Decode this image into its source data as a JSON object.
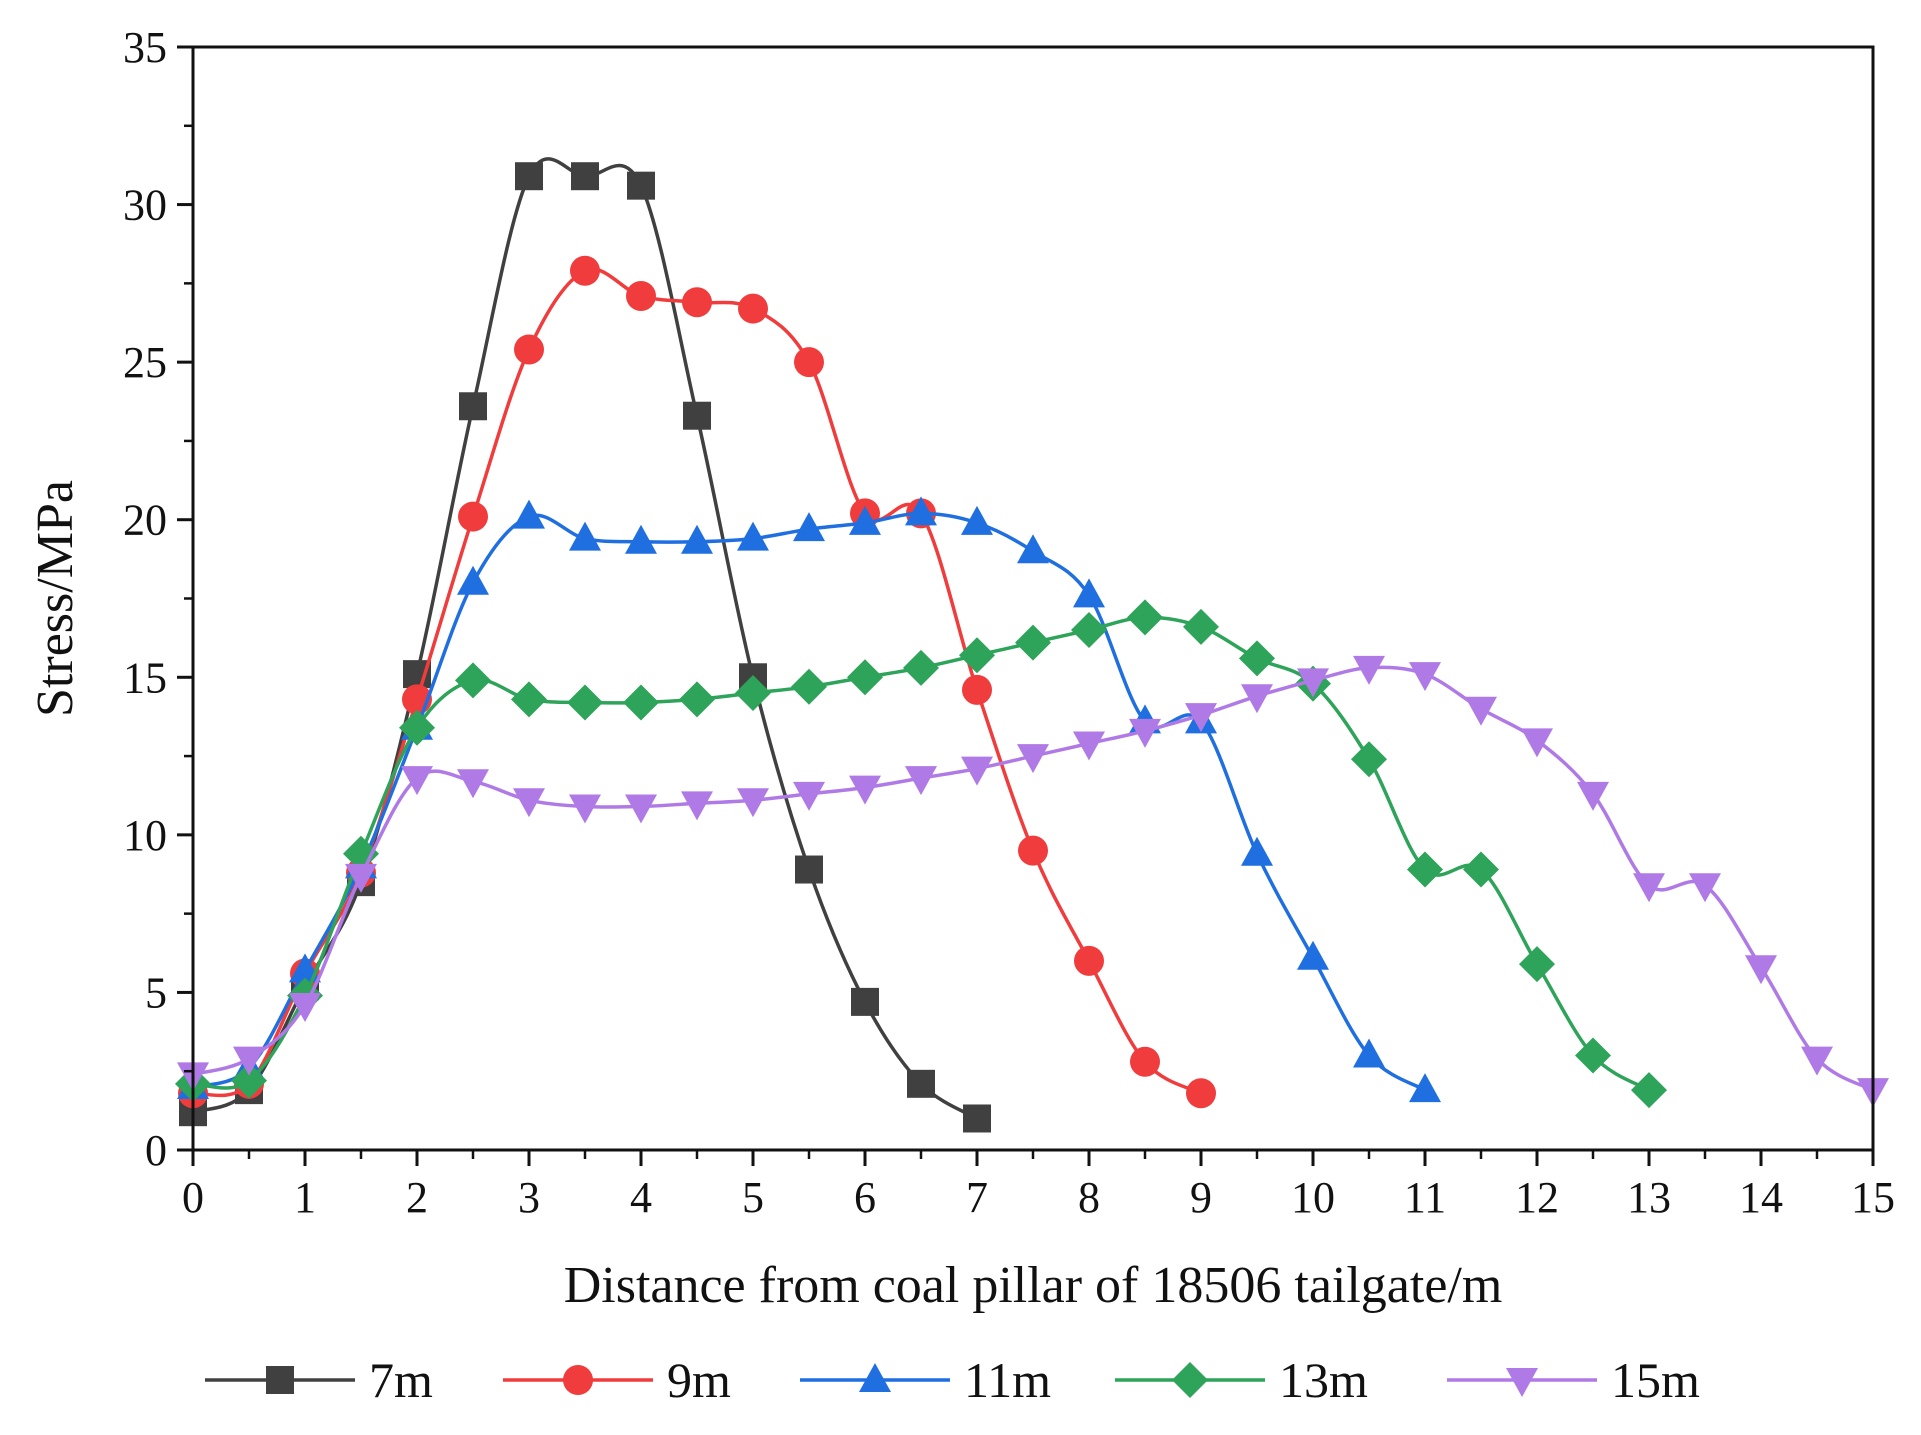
{
  "chart_data": {
    "type": "line",
    "title": "",
    "xlabel": "Distance from coal pillar of 18506 tailgate/m",
    "ylabel": "Stress/MPa",
    "xlim": [
      0,
      15
    ],
    "ylim": [
      0,
      35
    ],
    "xticks": [
      "0",
      "1",
      "2",
      "3",
      "4",
      "5",
      "6",
      "7",
      "8",
      "9",
      "10",
      "11",
      "12",
      "13",
      "14",
      "15"
    ],
    "yticks": [
      "0",
      "5",
      "10",
      "15",
      "20",
      "25",
      "30",
      "35"
    ],
    "grid": false,
    "legend_position": "bottom",
    "series": [
      {
        "name": "7m",
        "color": "#404040",
        "marker": "square",
        "x": [
          0,
          0.5,
          1,
          1.5,
          2,
          2.5,
          3,
          3.5,
          4,
          4.5,
          5,
          5.5,
          6,
          6.5,
          7
        ],
        "y": [
          1.2,
          1.9,
          5.2,
          8.5,
          15.1,
          23.6,
          30.9,
          30.9,
          30.6,
          23.3,
          15.0,
          8.9,
          4.7,
          2.1,
          1.0
        ]
      },
      {
        "name": "9m",
        "color": "#f03c3c",
        "marker": "circle",
        "x": [
          0,
          0.5,
          1,
          1.5,
          2,
          2.5,
          3,
          3.5,
          4,
          4.5,
          5,
          5.5,
          6,
          6.5,
          7,
          7.5,
          8,
          8.5,
          9
        ],
        "y": [
          1.8,
          2.1,
          5.6,
          8.8,
          14.3,
          20.1,
          25.4,
          27.9,
          27.1,
          26.9,
          26.7,
          25.0,
          20.2,
          20.2,
          14.6,
          9.5,
          6.0,
          2.8,
          1.8
        ]
      },
      {
        "name": "11m",
        "color": "#1f6fe0",
        "marker": "triangle-up",
        "x": [
          0,
          0.5,
          1,
          1.5,
          2,
          2.5,
          3,
          3.5,
          4,
          4.5,
          5,
          5.5,
          6,
          6.5,
          7,
          7.5,
          8,
          8.5,
          9,
          9.5,
          10,
          10.5,
          11
        ],
        "y": [
          2.0,
          2.6,
          5.7,
          9.0,
          13.4,
          18.0,
          20.1,
          19.4,
          19.3,
          19.3,
          19.4,
          19.7,
          19.9,
          20.2,
          19.9,
          19.0,
          17.6,
          13.6,
          13.6,
          9.4,
          6.1,
          3.0,
          1.9
        ]
      },
      {
        "name": "13m",
        "color": "#2ea35a",
        "marker": "diamond",
        "x": [
          0,
          0.5,
          1,
          1.5,
          2,
          2.5,
          3,
          3.5,
          4,
          4.5,
          5,
          5.5,
          6,
          6.5,
          7,
          7.5,
          8,
          8.5,
          9,
          9.5,
          10,
          10.5,
          11,
          11.5,
          12,
          12.5,
          13
        ],
        "y": [
          2.1,
          2.2,
          4.9,
          9.4,
          13.4,
          14.9,
          14.3,
          14.2,
          14.2,
          14.3,
          14.5,
          14.7,
          15.0,
          15.3,
          15.7,
          16.1,
          16.5,
          16.9,
          16.6,
          15.6,
          14.8,
          12.4,
          8.9,
          8.9,
          5.9,
          3.0,
          1.9
        ]
      },
      {
        "name": "15m",
        "color": "#b07ae6",
        "marker": "triangle-down",
        "x": [
          0,
          0.5,
          1,
          1.5,
          2,
          2.5,
          3,
          3.5,
          4,
          4.5,
          5,
          5.5,
          6,
          6.5,
          7,
          7.5,
          8,
          8.5,
          9,
          9.5,
          10,
          10.5,
          11,
          11.5,
          12,
          12.5,
          13,
          13.5,
          14,
          14.5,
          15
        ],
        "y": [
          2.4,
          2.9,
          4.6,
          8.7,
          11.8,
          11.7,
          11.1,
          10.9,
          10.9,
          11.0,
          11.1,
          11.3,
          11.5,
          11.8,
          12.1,
          12.5,
          12.9,
          13.3,
          13.8,
          14.4,
          14.9,
          15.3,
          15.1,
          14.0,
          13.0,
          11.3,
          8.4,
          8.4,
          5.8,
          2.9,
          1.9
        ]
      }
    ]
  }
}
